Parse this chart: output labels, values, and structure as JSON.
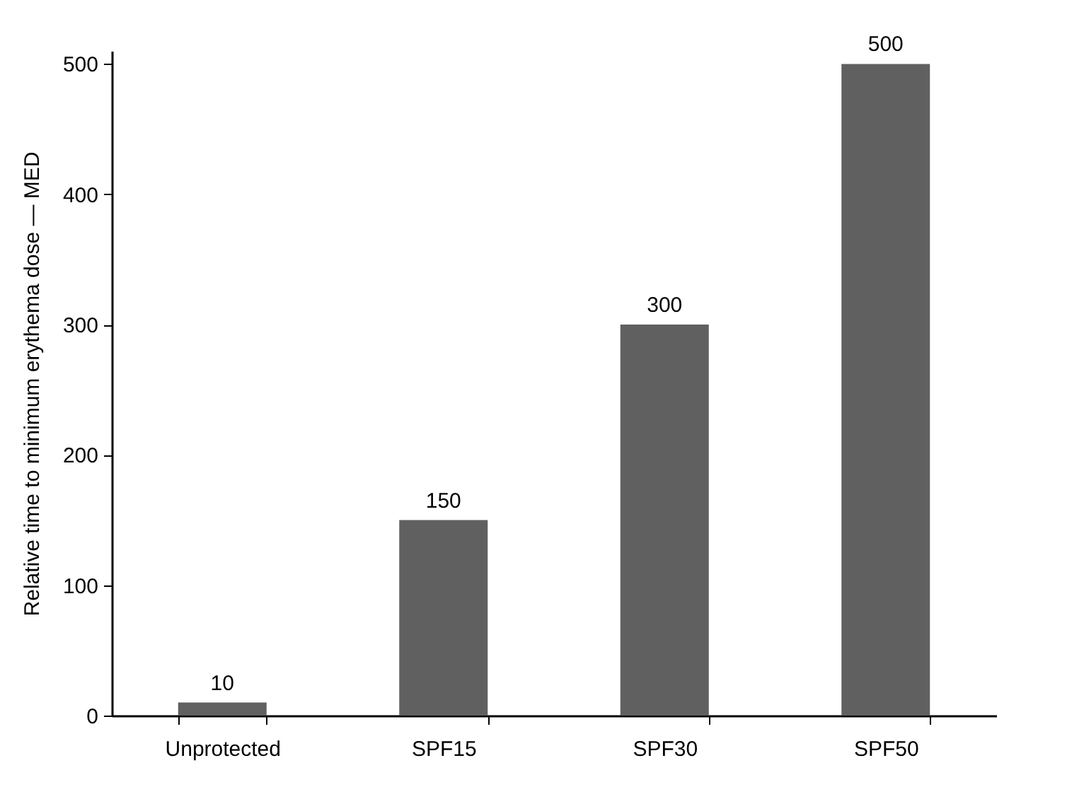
{
  "chart_data": {
    "type": "bar",
    "ylabel": "Relative time to minimum erythema dose — MED",
    "categories": [
      "Unprotected",
      "SPF15",
      "SPF30",
      "SPF50"
    ],
    "values": [
      10,
      150,
      300,
      500
    ],
    "color": "#606060",
    "ylim": [
      0,
      510
    ],
    "yticks": [
      0,
      100,
      200,
      300,
      400,
      500
    ],
    "grid": false,
    "data_labels": true
  }
}
